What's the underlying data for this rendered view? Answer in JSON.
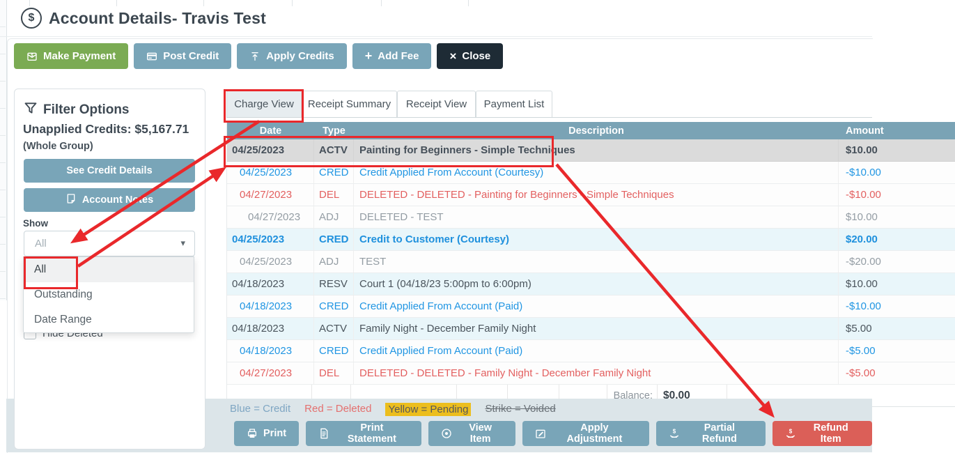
{
  "window": {
    "title": "Account Details- Travis Test",
    "title_icon": "dollar-circle-icon"
  },
  "toolbar": {
    "buttons": [
      {
        "id": "make-payment",
        "label": "Make Payment",
        "icon": "payment-envelope-icon",
        "style": "green"
      },
      {
        "id": "post-credit",
        "label": "Post Credit",
        "icon": "credit-card-icon",
        "style": "teal"
      },
      {
        "id": "apply-credits",
        "label": "Apply Credits",
        "icon": "upload-arrow-icon",
        "style": "teal"
      },
      {
        "id": "add-fee",
        "label": "Add Fee",
        "icon": "plus-icon",
        "style": "teal"
      },
      {
        "id": "close",
        "label": "Close",
        "icon": "close-icon",
        "style": "dark"
      }
    ]
  },
  "sidebar": {
    "title": "Filter Options",
    "title_icon": "funnel-icon",
    "unapplied_credits_label": "Unapplied Credits: $5,167.71",
    "scope_label": "(Whole Group)",
    "credit_details_button": "See Credit Details",
    "account_notes_button": "Account Notes",
    "show_label": "Show",
    "show_select": {
      "value": "All",
      "options": [
        "All",
        "Outstanding",
        "Date Range"
      ],
      "highlighted_option": "All"
    },
    "hide_deleted_label": "Hide Deleted",
    "hide_deleted_checked": false
  },
  "tabs": [
    {
      "label": "Charge View",
      "active": true
    },
    {
      "label": "Receipt Summary",
      "active": false
    },
    {
      "label": "Receipt View",
      "active": false
    },
    {
      "label": "Payment List",
      "active": false
    }
  ],
  "charge_table": {
    "columns": [
      "Date",
      "Type",
      "Description",
      "Amount"
    ],
    "rows": [
      {
        "date": "04/25/2023",
        "type": "ACTV",
        "description": "Painting for Beginners - Simple Techniques",
        "amount": "$10.00",
        "style": "selected",
        "indent": 0,
        "selected": true,
        "shaded": false
      },
      {
        "date": "04/25/2023",
        "type": "CRED",
        "description": "Credit Applied From Account (Courtesy)",
        "amount": "-$10.00",
        "style": "credit",
        "indent": 1,
        "selected": false,
        "shaded": false
      },
      {
        "date": "04/27/2023",
        "type": "DEL",
        "description": "DELETED - DELETED - Painting for Beginners - Simple Techniques",
        "amount": "-$10.00",
        "style": "deleted",
        "indent": 1,
        "selected": false,
        "shaded": false
      },
      {
        "date": "04/27/2023",
        "type": "ADJ",
        "description": "DELETED - TEST",
        "amount": "$10.00",
        "style": "muted",
        "indent": 2,
        "selected": false,
        "shaded": false
      },
      {
        "date": "04/25/2023",
        "type": "CRED",
        "description": "Credit to Customer (Courtesy)",
        "amount": "$20.00",
        "style": "credit-bold",
        "indent": 0,
        "selected": false,
        "shaded": true
      },
      {
        "date": "04/25/2023",
        "type": "ADJ",
        "description": "TEST",
        "amount": "-$20.00",
        "style": "muted",
        "indent": 1,
        "selected": false,
        "shaded": false
      },
      {
        "date": "04/18/2023",
        "type": "RESV",
        "description": "Court 1 (04/18/23 5:00pm to 6:00pm)",
        "amount": "$10.00",
        "style": "normal",
        "indent": 0,
        "selected": false,
        "shaded": true
      },
      {
        "date": "04/18/2023",
        "type": "CRED",
        "description": "Credit Applied From Account (Paid)",
        "amount": "-$10.00",
        "style": "credit",
        "indent": 1,
        "selected": false,
        "shaded": false
      },
      {
        "date": "04/18/2023",
        "type": "ACTV",
        "description": "Family Night - December Family Night",
        "amount": "$5.00",
        "style": "normal",
        "indent": 0,
        "selected": false,
        "shaded": true
      },
      {
        "date": "04/18/2023",
        "type": "CRED",
        "description": "Credit Applied From Account (Paid)",
        "amount": "-$5.00",
        "style": "credit",
        "indent": 1,
        "selected": false,
        "shaded": false
      },
      {
        "date": "04/27/2023",
        "type": "DEL",
        "description": "DELETED - DELETED - Family Night - December Family Night",
        "amount": "-$5.00",
        "style": "deleted",
        "indent": 1,
        "selected": false,
        "shaded": false
      }
    ],
    "balance_label": "Balance:",
    "balance_value": "$0.00"
  },
  "legend": [
    {
      "text": "Blue = Credit",
      "style": "credit"
    },
    {
      "text": "Red = Deleted",
      "style": "deleted"
    },
    {
      "text": "Yellow = Pending",
      "style": "pending"
    },
    {
      "text": "Strike = Voided",
      "style": "voided"
    }
  ],
  "action_bar": {
    "buttons": [
      {
        "id": "print",
        "label": "Print",
        "icon": "printer-icon",
        "style": "teal"
      },
      {
        "id": "print-statement",
        "label": "Print Statement",
        "icon": "document-icon",
        "style": "teal"
      },
      {
        "id": "view-item",
        "label": "View Item",
        "icon": "eye-icon",
        "style": "teal"
      },
      {
        "id": "apply-adjustment",
        "label": "Apply Adjustment",
        "icon": "note-edit-icon",
        "style": "teal"
      },
      {
        "id": "partial-refund",
        "label": "Partial Refund",
        "icon": "refund-hand-icon",
        "style": "teal"
      },
      {
        "id": "refund-item",
        "label": "Refund Item",
        "icon": "refund-hand-icon",
        "style": "red"
      }
    ]
  },
  "colors": {
    "accent_teal_button": "#79a5b8",
    "green_button": "#7bab53",
    "dark_button": "#1e2b35",
    "red_button": "#db5f58",
    "table_header": "#7aa3b5",
    "credit_blue_text": "#2196e3",
    "deleted_red_text": "#e36060",
    "muted_gray_text": "#949da4",
    "shaded_row": "#e9f6fa",
    "selected_row": "#dbdbdb",
    "pending_yellow": "#ecbe1d",
    "annotation_red": "#e9282b",
    "bottom_band": "#dce5e9"
  }
}
